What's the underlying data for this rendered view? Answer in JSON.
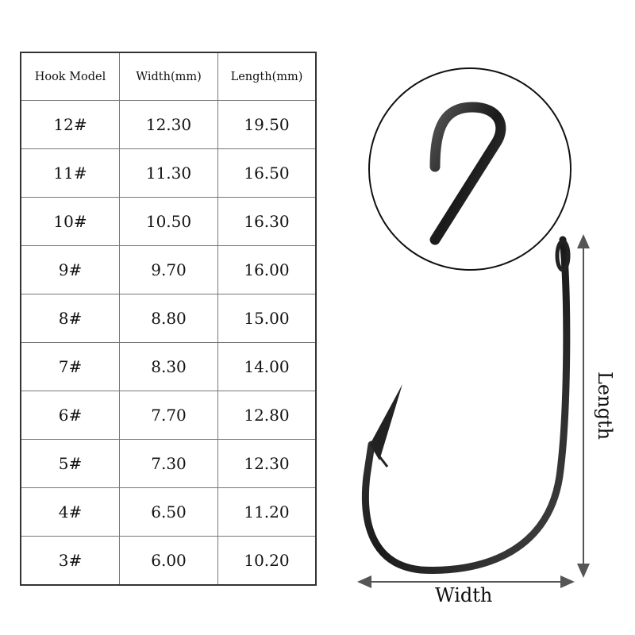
{
  "table": {
    "headers": [
      "Hook Model",
      "Width(mm)",
      "Length(mm)"
    ],
    "rows": [
      [
        "12#",
        "12.30",
        "19.50"
      ],
      [
        "11#",
        "11.30",
        "16.50"
      ],
      [
        "10#",
        "10.50",
        "16.30"
      ],
      [
        "9#",
        "9.70",
        "16.00"
      ],
      [
        "8#",
        "8.80",
        "15.00"
      ],
      [
        "7#",
        "8.30",
        "14.00"
      ],
      [
        "6#",
        "7.70",
        "12.80"
      ],
      [
        "5#",
        "7.30",
        "12.30"
      ],
      [
        "4#",
        "6.50",
        "11.20"
      ],
      [
        "3#",
        "6.00",
        "10.20"
      ]
    ]
  },
  "diagram": {
    "width_label": "Width",
    "length_label": "Length"
  }
}
